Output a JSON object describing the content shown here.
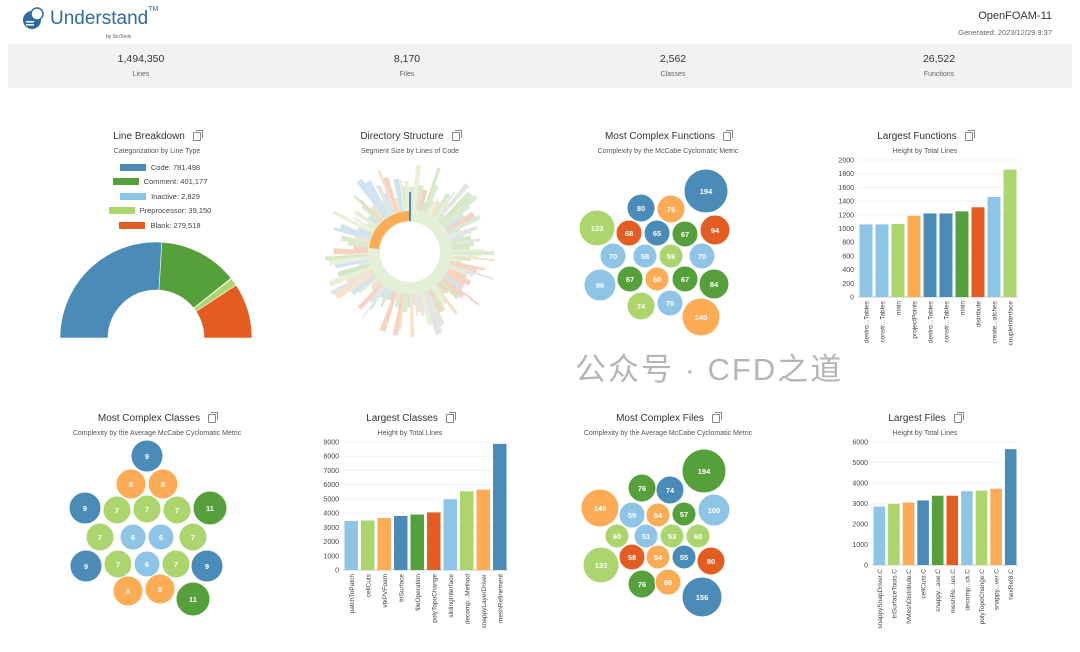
{
  "header": {
    "logo": "Understand",
    "logo_by": "by SciTools",
    "tm": "TM",
    "project": "OpenFOAM-11",
    "generated": "Generated: 2023/12/29 9:37"
  },
  "stats": [
    {
      "value": "1,494,350",
      "label": "Lines"
    },
    {
      "value": "8,170",
      "label": "Files"
    },
    {
      "value": "2,562",
      "label": "Classes"
    },
    {
      "value": "26,522",
      "label": "Functions"
    }
  ],
  "colors": {
    "blue": "#4a8bb8",
    "green": "#55a03a",
    "lightblue": "#8ec4e6",
    "lightgreen": "#acd56e",
    "orange": "#fdab55",
    "red": "#e35d22"
  },
  "watermark": "公众号 · CFD之道",
  "chart_data": [
    {
      "id": "line_breakdown",
      "type": "pie",
      "title": "Line Breakdown",
      "subtitle": "Categorization by Line Type",
      "legend_position": "top",
      "labels": [
        "Code",
        "Comment",
        "Inactive",
        "Preprocessor",
        "Blank"
      ],
      "values": [
        781498,
        401177,
        2829,
        39150,
        279518
      ],
      "legend": [
        "Code: 781,498",
        "Comment: 401,177",
        "Inactive: 2,829",
        "Preprocessor: 39,150",
        "Blank: 279,518"
      ],
      "colors": [
        "blue",
        "green",
        "lightblue",
        "lightgreen",
        "red"
      ]
    },
    {
      "id": "directory_structure",
      "type": "sunburst",
      "title": "Directory Structure",
      "subtitle": "Segment Size by Lines of Code"
    },
    {
      "id": "complex_functions",
      "type": "bubble",
      "title": "Most Complex Functions",
      "subtitle": "Complexity by the McCabe Cyclomatic Metric",
      "values": [
        194,
        80,
        76,
        133,
        68,
        65,
        67,
        94,
        70,
        58,
        59,
        70,
        96,
        67,
        60,
        67,
        84,
        74,
        70,
        140
      ],
      "colors": [
        "blue",
        "blue",
        "orange",
        "lightgreen",
        "red",
        "blue",
        "green",
        "red",
        "lightblue",
        "lightblue",
        "lightgreen",
        "lightblue",
        "lightblue",
        "green",
        "orange",
        "green",
        "green",
        "lightgreen",
        "lightblue",
        "orange"
      ]
    },
    {
      "id": "largest_functions",
      "type": "bar",
      "title": "Largest Functions",
      "subtitle": "Height by Total Lines",
      "ylim": [
        0,
        2000
      ],
      "yticks": [
        0,
        200,
        400,
        600,
        800,
        1000,
        1200,
        1400,
        1600,
        1800,
        2000
      ],
      "categories": [
        "destro...Tables",
        "constr...Tables",
        "main",
        "projectPoints",
        "destro...Tables",
        "constr...Tables",
        "main",
        "distribute",
        "create...atches",
        "coupleInterface"
      ],
      "values": [
        1060,
        1060,
        1065,
        1185,
        1220,
        1220,
        1250,
        1310,
        1460,
        1860
      ],
      "colors": [
        "lightblue",
        "lightblue",
        "lightgreen",
        "orange",
        "blue",
        "blue",
        "green",
        "red",
        "lightblue",
        "lightgreen"
      ]
    },
    {
      "id": "complex_classes",
      "type": "bubble",
      "title": "Most Complex Classes",
      "subtitle": "Complexity by the Average McCabe Cyclomatic Metric",
      "values": [
        9,
        8,
        8,
        9,
        7,
        7,
        7,
        11,
        7,
        6,
        6,
        7,
        9,
        7,
        6,
        7,
        9,
        8,
        8,
        11
      ],
      "colors": [
        "blue",
        "orange",
        "orange",
        "blue",
        "lightgreen",
        "lightgreen",
        "lightgreen",
        "green",
        "lightgreen",
        "lightblue",
        "lightblue",
        "lightgreen",
        "blue",
        "lightgreen",
        "lightblue",
        "lightgreen",
        "blue",
        "orange",
        "orange",
        "green"
      ]
    },
    {
      "id": "largest_classes",
      "type": "bar",
      "title": "Largest Classes",
      "subtitle": "Height by Total Lines",
      "ylim": [
        0,
        9000
      ],
      "yticks": [
        0,
        1000,
        2000,
        3000,
        4000,
        5000,
        6000,
        7000,
        8000,
        9000
      ],
      "categories": [
        "patchToPatch",
        "cellCuts",
        "vtkPVFoam",
        "triSurface",
        "fileOperation",
        "polyTopoChange",
        "slidingInterface",
        "decomp...Method",
        "snappyLayerDriver",
        "meshRefinement"
      ],
      "values": [
        3450,
        3480,
        3650,
        3800,
        3900,
        4050,
        4980,
        5530,
        5650,
        8870
      ],
      "colors": [
        "lightblue",
        "lightgreen",
        "orange",
        "blue",
        "green",
        "red",
        "lightblue",
        "lightgreen",
        "orange",
        "blue"
      ]
    },
    {
      "id": "complex_files",
      "type": "bubble",
      "title": "Most Complex Files",
      "subtitle": "Complexity by the Average McCabe Cyclomatic Metric",
      "values": [
        194,
        76,
        74,
        140,
        59,
        54,
        57,
        100,
        60,
        51,
        53,
        60,
        133,
        58,
        54,
        55,
        80,
        76,
        68,
        156
      ],
      "colors": [
        "green",
        "green",
        "blue",
        "orange",
        "lightblue",
        "orange",
        "green",
        "lightblue",
        "lightgreen",
        "lightblue",
        "lightgreen",
        "lightgreen",
        "lightgreen",
        "red",
        "orange",
        "blue",
        "red",
        "green",
        "orange",
        "blue"
      ]
    },
    {
      "id": "largest_files",
      "type": "bar",
      "title": "Largest Files",
      "subtitle": "Height by Total Lines",
      "ylim": [
        0,
        6000
      ],
      "yticks": [
        0,
        1000,
        2000,
        3000,
        4000,
        5000,
        6000
      ],
      "categories": [
        "snappySnapDriver.C",
        "triSurfaceTools.C",
        "fvMeshDistribute.C",
        "cellCuts.C",
        "snappy...ase.C",
        "meshRe...ies.C",
        "decomp...ck.C",
        "polyTopoChange.C",
        "snappy...ver.C",
        "hexRef8.C"
      ],
      "values": [
        2850,
        2980,
        3050,
        3150,
        3380,
        3380,
        3600,
        3630,
        3720,
        5650
      ],
      "colors": [
        "lightblue",
        "lightgreen",
        "orange",
        "blue",
        "green",
        "red",
        "lightblue",
        "lightgreen",
        "orange",
        "blue"
      ]
    }
  ]
}
